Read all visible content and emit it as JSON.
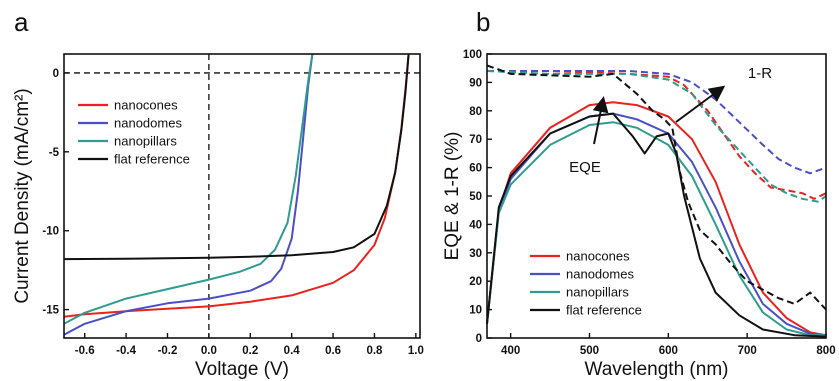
{
  "chart_data": [
    {
      "panel": "a",
      "type": "line",
      "xlabel": "Voltage (V)",
      "ylabel": "Current Density (mA/cm²)",
      "xlim": [
        -0.7,
        1.02
      ],
      "ylim": [
        -16.8,
        1.2
      ],
      "x_ticks": [
        -0.6,
        -0.4,
        -0.2,
        0.0,
        0.2,
        0.4,
        0.6,
        0.8,
        1.0
      ],
      "x_tick_labels": [
        "-0.6",
        "-0.4",
        "-0.2",
        "0.0",
        "0.2",
        "0.4",
        "0.6",
        "0.8",
        "1.0"
      ],
      "y_ticks": [
        0,
        -5,
        -10,
        -15
      ],
      "y_tick_labels": [
        "0",
        "-5",
        "-10",
        "-15"
      ],
      "reference_lines": {
        "x": 0,
        "y": 0,
        "style": "dashed"
      },
      "legend_position": "top-left",
      "series": [
        {
          "name": "nanocones",
          "color": "#e8231e",
          "points": [
            [
              -0.7,
              -15.45
            ],
            [
              -0.6,
              -15.3
            ],
            [
              -0.4,
              -15.1
            ],
            [
              -0.2,
              -14.95
            ],
            [
              0.0,
              -14.8
            ],
            [
              0.2,
              -14.5
            ],
            [
              0.4,
              -14.1
            ],
            [
              0.6,
              -13.3
            ],
            [
              0.7,
              -12.5
            ],
            [
              0.8,
              -10.9
            ],
            [
              0.85,
              -9.2
            ],
            [
              0.9,
              -6.3
            ],
            [
              0.93,
              -3.5
            ],
            [
              0.95,
              -1.0
            ],
            [
              0.965,
              1.2
            ]
          ]
        },
        {
          "name": "nanodomes",
          "color": "#4b4fc4",
          "points": [
            [
              -0.7,
              -16.6
            ],
            [
              -0.6,
              -15.9
            ],
            [
              -0.4,
              -15.1
            ],
            [
              -0.2,
              -14.6
            ],
            [
              0.0,
              -14.3
            ],
            [
              0.2,
              -13.8
            ],
            [
              0.3,
              -13.2
            ],
            [
              0.35,
              -12.4
            ],
            [
              0.4,
              -10.5
            ],
            [
              0.43,
              -7.5
            ],
            [
              0.46,
              -3.5
            ],
            [
              0.48,
              -0.8
            ],
            [
              0.5,
              1.2
            ]
          ]
        },
        {
          "name": "nanopillars",
          "color": "#2e9c90",
          "points": [
            [
              -0.7,
              -15.9
            ],
            [
              -0.6,
              -15.2
            ],
            [
              -0.4,
              -14.3
            ],
            [
              -0.2,
              -13.7
            ],
            [
              0.0,
              -13.1
            ],
            [
              0.15,
              -12.6
            ],
            [
              0.25,
              -12.1
            ],
            [
              0.32,
              -11.2
            ],
            [
              0.38,
              -9.5
            ],
            [
              0.42,
              -6.5
            ],
            [
              0.45,
              -3.5
            ],
            [
              0.48,
              -0.5
            ],
            [
              0.5,
              1.2
            ]
          ]
        },
        {
          "name": "flat reference",
          "color": "#111111",
          "points": [
            [
              -0.7,
              -11.8
            ],
            [
              -0.4,
              -11.78
            ],
            [
              -0.2,
              -11.75
            ],
            [
              0.0,
              -11.72
            ],
            [
              0.2,
              -11.65
            ],
            [
              0.4,
              -11.55
            ],
            [
              0.6,
              -11.35
            ],
            [
              0.7,
              -11.05
            ],
            [
              0.8,
              -10.2
            ],
            [
              0.86,
              -8.4
            ],
            [
              0.9,
              -6.3
            ],
            [
              0.93,
              -3.6
            ],
            [
              0.95,
              -1.2
            ],
            [
              0.965,
              1.2
            ]
          ]
        }
      ]
    },
    {
      "panel": "b",
      "type": "line",
      "xlabel": "Wavelength (nm)",
      "ylabel": "EQE & 1-R (%)",
      "xlim": [
        370,
        800
      ],
      "ylim": [
        0,
        100
      ],
      "x_ticks": [
        400,
        500,
        600,
        700,
        800
      ],
      "x_tick_labels": [
        "400",
        "500",
        "600",
        "700",
        "800"
      ],
      "y_ticks": [
        0,
        10,
        20,
        30,
        40,
        50,
        60,
        70,
        80,
        90,
        100
      ],
      "y_tick_labels": [
        "0",
        "10",
        "20",
        "30",
        "40",
        "50",
        "60",
        "70",
        "80",
        "90",
        "100"
      ],
      "legend_position": "bottom-center",
      "annotations": [
        "EQE",
        "1-R"
      ],
      "series": [
        {
          "name": "nanocones",
          "kind": "EQE",
          "style": "solid",
          "color": "#e8231e",
          "points": [
            [
              370,
              5
            ],
            [
              385,
              45
            ],
            [
              400,
              58
            ],
            [
              450,
              74
            ],
            [
              500,
              82
            ],
            [
              530,
              83
            ],
            [
              560,
              82
            ],
            [
              600,
              78
            ],
            [
              630,
              70
            ],
            [
              660,
              55
            ],
            [
              690,
              33
            ],
            [
              720,
              16
            ],
            [
              750,
              7
            ],
            [
              780,
              2
            ],
            [
              800,
              1
            ]
          ]
        },
        {
          "name": "nanodomes",
          "kind": "EQE",
          "style": "solid",
          "color": "#4b4fc4",
          "points": [
            [
              370,
              5
            ],
            [
              385,
              45
            ],
            [
              400,
              56
            ],
            [
              450,
              72
            ],
            [
              500,
              78
            ],
            [
              530,
              79
            ],
            [
              560,
              77
            ],
            [
              600,
              72
            ],
            [
              630,
              62
            ],
            [
              660,
              46
            ],
            [
              690,
              27
            ],
            [
              720,
              12
            ],
            [
              750,
              5
            ],
            [
              780,
              1.5
            ],
            [
              800,
              1
            ]
          ]
        },
        {
          "name": "nanopillars",
          "kind": "EQE",
          "style": "solid",
          "color": "#2e9c90",
          "points": [
            [
              370,
              5
            ],
            [
              385,
              44
            ],
            [
              400,
              54
            ],
            [
              450,
              68
            ],
            [
              500,
              75
            ],
            [
              530,
              76
            ],
            [
              560,
              74
            ],
            [
              600,
              68
            ],
            [
              630,
              57
            ],
            [
              660,
              40
            ],
            [
              690,
              22
            ],
            [
              720,
              9
            ],
            [
              750,
              3
            ],
            [
              780,
              1
            ],
            [
              800,
              1
            ]
          ]
        },
        {
          "name": "flat reference",
          "kind": "EQE",
          "style": "solid",
          "color": "#111111",
          "points": [
            [
              370,
              5
            ],
            [
              385,
              46
            ],
            [
              400,
              57
            ],
            [
              450,
              72
            ],
            [
              500,
              78
            ],
            [
              530,
              79
            ],
            [
              555,
              71
            ],
            [
              570,
              65
            ],
            [
              585,
              71
            ],
            [
              600,
              72
            ],
            [
              610,
              65
            ],
            [
              620,
              50
            ],
            [
              640,
              28
            ],
            [
              660,
              16
            ],
            [
              690,
              8
            ],
            [
              720,
              3
            ],
            [
              760,
              1
            ],
            [
              800,
              0.5
            ]
          ]
        },
        {
          "name": "nanocones",
          "kind": "1-R",
          "style": "dashed",
          "color": "#e8231e",
          "points": [
            [
              370,
              94
            ],
            [
              450,
              94
            ],
            [
              550,
              93
            ],
            [
              600,
              92
            ],
            [
              620,
              89
            ],
            [
              650,
              80
            ],
            [
              670,
              72
            ],
            [
              690,
              64
            ],
            [
              710,
              58
            ],
            [
              730,
              53
            ],
            [
              750,
              52
            ],
            [
              770,
              51
            ],
            [
              785,
              49
            ],
            [
              800,
              51
            ]
          ]
        },
        {
          "name": "nanodomes",
          "kind": "1-R",
          "style": "dashed",
          "color": "#4b4fc4",
          "points": [
            [
              370,
              94
            ],
            [
              450,
              94
            ],
            [
              550,
              94
            ],
            [
              600,
              93
            ],
            [
              630,
              90
            ],
            [
              660,
              84
            ],
            [
              690,
              76
            ],
            [
              720,
              68
            ],
            [
              740,
              63
            ],
            [
              760,
              60
            ],
            [
              780,
              58
            ],
            [
              800,
              60
            ]
          ]
        },
        {
          "name": "nanopillars",
          "kind": "1-R",
          "style": "dashed",
          "color": "#2e9c90",
          "points": [
            [
              370,
              94
            ],
            [
              450,
              93
            ],
            [
              550,
              93
            ],
            [
              600,
              91
            ],
            [
              630,
              86
            ],
            [
              660,
              75
            ],
            [
              690,
              66
            ],
            [
              710,
              60
            ],
            [
              730,
              54
            ],
            [
              750,
              51
            ],
            [
              770,
              49
            ],
            [
              790,
              48
            ],
            [
              800,
              50
            ]
          ]
        },
        {
          "name": "flat reference",
          "kind": "1-R",
          "style": "dashed",
          "color": "#111111",
          "points": [
            [
              370,
              96
            ],
            [
              400,
              93
            ],
            [
              500,
              92
            ],
            [
              530,
              93
            ],
            [
              560,
              86
            ],
            [
              580,
              80
            ],
            [
              595,
              77
            ],
            [
              605,
              74
            ],
            [
              615,
              58
            ],
            [
              625,
              48
            ],
            [
              640,
              38
            ],
            [
              660,
              33
            ],
            [
              680,
              26
            ],
            [
              700,
              20
            ],
            [
              720,
              17
            ],
            [
              740,
              14
            ],
            [
              760,
              12
            ],
            [
              780,
              16
            ],
            [
              800,
              10
            ]
          ]
        }
      ]
    }
  ]
}
